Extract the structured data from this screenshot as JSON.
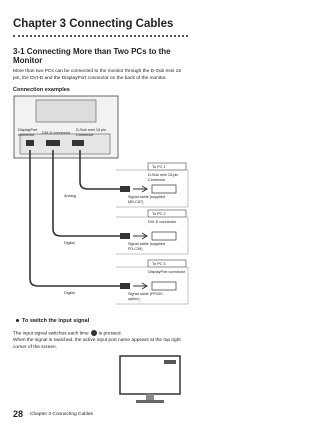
{
  "header": {
    "title": "Chapter 3  Connecting Cables"
  },
  "section": {
    "title": "3-1    Connecting More than Two PCs to the Monitor",
    "body": "More than two PCs can be connected to the monitor through the D-Sub mini 15 pin, the DVI-D and the DisplayPort connector on the back of the monitor.",
    "subheading": "Connection examples"
  },
  "diagram": {
    "monitor_labels": [
      "DisplayPort connector",
      "DVI-D connector",
      "D-Sub mini 15 pin Connector"
    ],
    "connections": [
      {
        "pc": "To PC 1",
        "connector": "D-Sub mini 15-pin Connector",
        "cable": "Signal cable (supplied MD-C87)",
        "signal": "Analog"
      },
      {
        "pc": "To PC 2",
        "connector": "DVI-D connector",
        "cable": "Signal cable (supplied FD-C39)",
        "signal": "Digital"
      },
      {
        "pc": "To PC 3",
        "connector": "DisplayPort connector",
        "cable": "Signal cable (PP200 option)",
        "signal": "Digital"
      }
    ]
  },
  "switch": {
    "heading": "To switch the input signal",
    "text_before": "The input signal switches each time",
    "text_after": "is pressed.",
    "note": "When the signal is switched, the active input port name appears at the top right corner of the screen."
  },
  "footer": {
    "page": "28",
    "chapter": "Chapter 3  Connecting Cables"
  }
}
